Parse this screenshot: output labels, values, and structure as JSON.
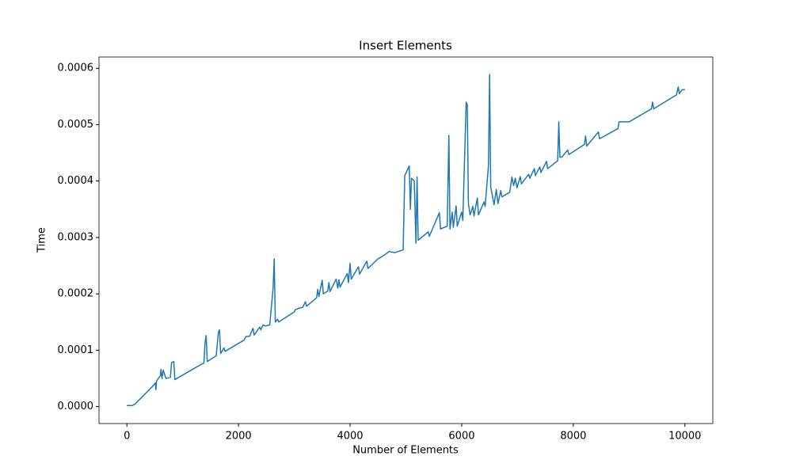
{
  "chart_data": {
    "type": "line",
    "title": "Insert Elements",
    "x_label": "Number of Elements",
    "y_label": "Time",
    "color": "#1f77b4",
    "x": [
      0,
      100,
      150,
      250,
      350,
      450,
      510,
      520,
      530,
      600,
      610,
      630,
      650,
      700,
      780,
      800,
      840,
      860,
      1350,
      1380,
      1400,
      1420,
      1440,
      1600,
      1640,
      1660,
      1680,
      1740,
      1760,
      2100,
      2130,
      2200,
      2260,
      2280,
      2380,
      2400,
      2440,
      2480,
      2560,
      2620,
      2640,
      2660,
      2700,
      2720,
      3000,
      3020,
      3100,
      3150,
      3200,
      3220,
      3400,
      3420,
      3440,
      3500,
      3520,
      3600,
      3620,
      3640,
      3750,
      3780,
      3800,
      3820,
      3950,
      3970,
      4000,
      4020,
      4150,
      4170,
      4300,
      4320,
      4500,
      4600,
      4700,
      4800,
      4950,
      4980,
      5020,
      5060,
      5080,
      5100,
      5150,
      5180,
      5200,
      5220,
      5400,
      5420,
      5600,
      5620,
      5740,
      5770,
      5790,
      5830,
      5850,
      5900,
      5920,
      6000,
      6020,
      6080,
      6100,
      6120,
      6150,
      6200,
      6220,
      6280,
      6300,
      6400,
      6420,
      6480,
      6500,
      6520,
      6560,
      6580,
      6620,
      6650,
      6700,
      6720,
      6860,
      6900,
      6930,
      6960,
      6990,
      7050,
      7070,
      7200,
      7220,
      7300,
      7320,
      7400,
      7420,
      7520,
      7540,
      7720,
      7740,
      7760,
      7800,
      7900,
      7920,
      8200,
      8220,
      8240,
      8450,
      8470,
      8800,
      8820,
      9000,
      9400,
      9420,
      9440,
      9850,
      9880,
      9900,
      9950,
      10000
    ],
    "values": [
      2e-06,
      2e-06,
      5e-06,
      1.5e-05,
      2.5e-05,
      3.5e-05,
      4.2e-05,
      3e-05,
      4.5e-05,
      5.5e-05,
      6.6e-05,
      5e-05,
      6.5e-05,
      5e-05,
      5.2e-05,
      7.8e-05,
      8e-05,
      4.8e-05,
      7.6e-05,
      7.7e-05,
      0.000112,
      0.000126,
      8e-05,
      9e-05,
      0.000132,
      0.000136,
      9.4e-05,
      0.000104,
      9.8e-05,
      0.000118,
      0.000124,
      0.000125,
      0.000139,
      0.000127,
      0.000141,
      0.000136,
      0.000145,
      0.000143,
      0.000145,
      0.00021,
      0.000262,
      0.00015,
      0.000155,
      0.00015,
      0.000168,
      0.000172,
      0.000175,
      0.000176,
      0.000186,
      0.000178,
      0.000193,
      0.000208,
      0.000195,
      0.000224,
      0.0002,
      0.000205,
      0.00022,
      0.000204,
      0.000226,
      0.00021,
      0.000225,
      0.000212,
      0.000236,
      0.00022,
      0.000254,
      0.000226,
      0.000248,
      0.000235,
      0.000258,
      0.000245,
      0.000262,
      0.000268,
      0.000275,
      0.000273,
      0.000278,
      0.00041,
      0.000418,
      0.000427,
      0.00035,
      0.000405,
      0.0004,
      0.00029,
      0.000407,
      0.000295,
      0.00031,
      0.000302,
      0.000344,
      0.000315,
      0.00032,
      0.000481,
      0.000315,
      0.000345,
      0.000318,
      0.000356,
      0.00032,
      0.000345,
      0.00033,
      0.00054,
      0.000535,
      0.00036,
      0.00034,
      0.000355,
      0.000338,
      0.00037,
      0.00034,
      0.000363,
      0.000355,
      0.000428,
      0.000589,
      0.00039,
      0.000368,
      0.000358,
      0.000385,
      0.00036,
      0.000383,
      0.000372,
      0.00038,
      0.000407,
      0.000392,
      0.000405,
      0.000388,
      0.000408,
      0.000395,
      0.000412,
      0.000405,
      0.000422,
      0.00041,
      0.000425,
      0.000415,
      0.000435,
      0.000422,
      0.000436,
      0.000505,
      0.000442,
      0.000443,
      0.000455,
      0.000447,
      0.000465,
      0.00048,
      0.000462,
      0.000487,
      0.000475,
      0.000493,
      0.000505,
      0.000505,
      0.000528,
      0.00054,
      0.000528,
      0.000553,
      0.000567,
      0.000555,
      0.000562,
      0.000562
    ],
    "xlim": [
      -500,
      10500
    ],
    "ylim": [
      -3e-05,
      0.00062
    ],
    "xticks": [
      0,
      2000,
      4000,
      6000,
      8000,
      10000
    ],
    "yticks": [
      {
        "value": 0,
        "label": "0.0000"
      },
      {
        "value": 0.0001,
        "label": "0.0001"
      },
      {
        "value": 0.0002,
        "label": "0.0002"
      },
      {
        "value": 0.0003,
        "label": "0.0003"
      },
      {
        "value": 0.0004,
        "label": "0.0004"
      },
      {
        "value": 0.0005,
        "label": "0.0005"
      },
      {
        "value": 0.0006,
        "label": "0.0006"
      }
    ]
  }
}
